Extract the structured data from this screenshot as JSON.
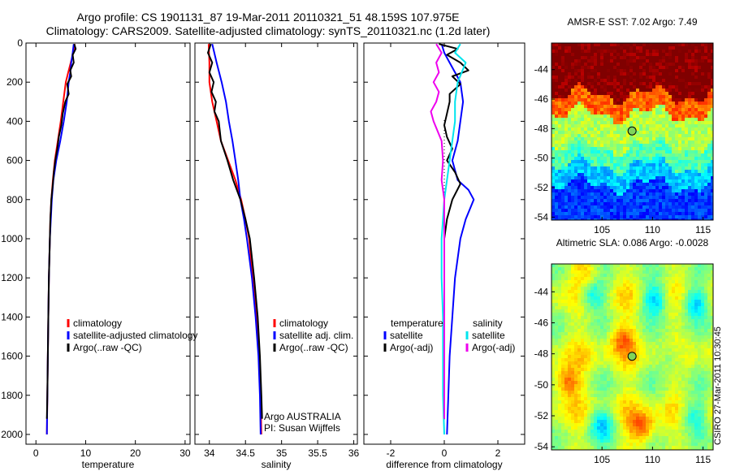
{
  "titles": {
    "line1": "Argo profile: CS 1901131_87 19-Mar-2011 20110321_51 48.159S 107.975E",
    "line2": "Climatology: CARS2009. Satellite-adjusted climatology: synTS_20110321.nc (1.2d later)"
  },
  "side_label": "CSIRO 27-Mar-2011 10:30:45",
  "colors": {
    "climatology": "#ff0000",
    "satellite": "#0000ff",
    "argo": "#000000",
    "temp_satellite": "#0000ff",
    "sal_satellite": "#00e5ee",
    "sal_argo_adj": "#ee00ee"
  },
  "chart_data": [
    {
      "id": "temperature",
      "type": "line",
      "xlabel": "temperature",
      "ylabel": "",
      "xlim": [
        -2,
        31
      ],
      "ylim": [
        2050,
        0
      ],
      "xticks": [
        0,
        10,
        20,
        30
      ],
      "yticks": [
        0,
        200,
        400,
        600,
        800,
        1000,
        1200,
        1400,
        1600,
        1800,
        2000
      ],
      "legend": [
        "climatology",
        "satellite-adjusted climatology",
        "Argo(..raw -QC)"
      ],
      "series": [
        {
          "name": "climatology",
          "color": "#ff0000",
          "points": [
            [
              7.8,
              5
            ],
            [
              7.5,
              50
            ],
            [
              7.0,
              100
            ],
            [
              6.5,
              150
            ],
            [
              6.0,
              200
            ],
            [
              5.5,
              300
            ],
            [
              5.0,
              400
            ],
            [
              4.4,
              500
            ],
            [
              3.8,
              600
            ],
            [
              3.4,
              700
            ],
            [
              3.1,
              800
            ],
            [
              2.9,
              900
            ],
            [
              2.8,
              1000
            ],
            [
              2.6,
              1200
            ],
            [
              2.5,
              1400
            ],
            [
              2.4,
              1600
            ],
            [
              2.3,
              1800
            ],
            [
              2.2,
              2000
            ]
          ]
        },
        {
          "name": "satellite-adjusted climatology",
          "color": "#0000ff",
          "points": [
            [
              7.6,
              5
            ],
            [
              7.4,
              50
            ],
            [
              7.1,
              100
            ],
            [
              6.9,
              150
            ],
            [
              6.6,
              200
            ],
            [
              6.2,
              300
            ],
            [
              5.6,
              400
            ],
            [
              4.9,
              500
            ],
            [
              4.1,
              600
            ],
            [
              3.5,
              700
            ],
            [
              3.2,
              800
            ],
            [
              3.0,
              900
            ],
            [
              2.8,
              1000
            ],
            [
              2.6,
              1200
            ],
            [
              2.5,
              1400
            ],
            [
              2.4,
              1600
            ],
            [
              2.3,
              1800
            ],
            [
              2.2,
              2000
            ]
          ]
        },
        {
          "name": "Argo(..raw -QC)",
          "color": "#000000",
          "points": [
            [
              7.7,
              5
            ],
            [
              8.0,
              30
            ],
            [
              7.4,
              60
            ],
            [
              7.6,
              100
            ],
            [
              6.9,
              140
            ],
            [
              7.1,
              170
            ],
            [
              6.3,
              210
            ],
            [
              6.6,
              260
            ],
            [
              5.9,
              300
            ],
            [
              5.4,
              360
            ],
            [
              5.1,
              420
            ],
            [
              4.6,
              480
            ],
            [
              4.3,
              540
            ],
            [
              3.9,
              600
            ],
            [
              3.6,
              660
            ],
            [
              3.4,
              720
            ],
            [
              3.1,
              800
            ],
            [
              2.9,
              900
            ],
            [
              2.8,
              1000
            ],
            [
              2.6,
              1200
            ],
            [
              2.5,
              1400
            ],
            [
              2.4,
              1600
            ],
            [
              2.3,
              1800
            ],
            [
              2.2,
              1920
            ]
          ]
        }
      ]
    },
    {
      "id": "salinity",
      "type": "line",
      "xlabel": "salinity",
      "ylabel": "",
      "xlim": [
        33.8,
        36.05
      ],
      "ylim": [
        2050,
        0
      ],
      "xticks": [
        34,
        34.5,
        35,
        35.5,
        36
      ],
      "yticks": [
        0,
        200,
        400,
        600,
        800,
        1000,
        1200,
        1400,
        1600,
        1800,
        2000
      ],
      "legend": [
        "climatology",
        "satellite adj. clim.",
        "Argo(..raw -QC)"
      ],
      "annotations": [
        "Argo AUSTRALIA",
        "PI: Susan Wijffels"
      ],
      "series": [
        {
          "name": "climatology",
          "color": "#ff0000",
          "points": [
            [
              33.99,
              5
            ],
            [
              34.0,
              100
            ],
            [
              34.0,
              200
            ],
            [
              34.04,
              300
            ],
            [
              34.1,
              400
            ],
            [
              34.16,
              500
            ],
            [
              34.26,
              600
            ],
            [
              34.36,
              700
            ],
            [
              34.44,
              800
            ],
            [
              34.5,
              900
            ],
            [
              34.55,
              1000
            ],
            [
              34.6,
              1200
            ],
            [
              34.65,
              1400
            ],
            [
              34.69,
              1600
            ],
            [
              34.71,
              1800
            ],
            [
              34.72,
              2000
            ]
          ]
        },
        {
          "name": "satellite adj. clim.",
          "color": "#0000ff",
          "points": [
            [
              34.04,
              5
            ],
            [
              34.1,
              100
            ],
            [
              34.17,
              200
            ],
            [
              34.23,
              300
            ],
            [
              34.27,
              400
            ],
            [
              34.32,
              500
            ],
            [
              34.36,
              600
            ],
            [
              34.4,
              700
            ],
            [
              34.43,
              800
            ],
            [
              34.48,
              900
            ],
            [
              34.52,
              1000
            ],
            [
              34.59,
              1200
            ],
            [
              34.64,
              1400
            ],
            [
              34.68,
              1600
            ],
            [
              34.7,
              1800
            ],
            [
              34.71,
              2000
            ]
          ]
        },
        {
          "name": "Argo(..raw -QC)",
          "color": "#000000",
          "points": [
            [
              34.02,
              5
            ],
            [
              33.98,
              50
            ],
            [
              34.04,
              100
            ],
            [
              34.0,
              150
            ],
            [
              34.06,
              200
            ],
            [
              34.03,
              250
            ],
            [
              34.09,
              300
            ],
            [
              34.07,
              350
            ],
            [
              34.13,
              400
            ],
            [
              34.16,
              500
            ],
            [
              34.25,
              600
            ],
            [
              34.33,
              700
            ],
            [
              34.43,
              800
            ],
            [
              34.5,
              900
            ],
            [
              34.56,
              1000
            ],
            [
              34.62,
              1200
            ],
            [
              34.67,
              1400
            ],
            [
              34.7,
              1600
            ],
            [
              34.72,
              1800
            ],
            [
              34.73,
              1920
            ]
          ]
        }
      ]
    },
    {
      "id": "difference",
      "type": "line",
      "xlabel": "difference from climatology",
      "ylabel": "",
      "xlim": [
        -3,
        3
      ],
      "ylim": [
        2050,
        0
      ],
      "xticks": [
        -2,
        0,
        2
      ],
      "yticks": [
        0,
        200,
        400,
        600,
        800,
        1000,
        1200,
        1400,
        1600,
        1800,
        2000
      ],
      "legend_left": [
        "temperature",
        "satellite",
        "Argo(-adj)"
      ],
      "legend_right": [
        "salinity",
        "satellite",
        "Argo(-adj)"
      ],
      "series": [
        {
          "name": "temperature satellite",
          "color": "#0000ff",
          "points": [
            [
              -0.1,
              5
            ],
            [
              0.0,
              50
            ],
            [
              0.2,
              100
            ],
            [
              0.4,
              150
            ],
            [
              0.6,
              200
            ],
            [
              0.7,
              300
            ],
            [
              0.6,
              400
            ],
            [
              0.5,
              500
            ],
            [
              0.3,
              600
            ],
            [
              0.5,
              700
            ],
            [
              0.9,
              750
            ],
            [
              1.1,
              800
            ],
            [
              0.8,
              900
            ],
            [
              0.6,
              1000
            ],
            [
              0.4,
              1200
            ],
            [
              0.3,
              1400
            ],
            [
              0.2,
              1600
            ],
            [
              0.15,
              1800
            ],
            [
              0.1,
              2000
            ]
          ]
        },
        {
          "name": "temperature Argo(-adj)",
          "color": "#000000",
          "points": [
            [
              -0.2,
              5
            ],
            [
              0.5,
              30
            ],
            [
              0.1,
              60
            ],
            [
              0.6,
              100
            ],
            [
              0.9,
              140
            ],
            [
              0.3,
              170
            ],
            [
              0.6,
              210
            ],
            [
              0.2,
              260
            ],
            [
              0.2,
              300
            ],
            [
              0.1,
              360
            ],
            [
              0.0,
              420
            ],
            [
              0.1,
              480
            ],
            [
              0.3,
              540
            ],
            [
              0.1,
              600
            ],
            [
              0.4,
              660
            ],
            [
              0.6,
              720
            ],
            [
              0.3,
              800
            ],
            [
              0.1,
              900
            ],
            [
              0.0,
              1000
            ],
            [
              0.0,
              1200
            ],
            [
              0.0,
              1400
            ],
            [
              0.0,
              1600
            ],
            [
              0.0,
              1800
            ],
            [
              0.0,
              1920
            ]
          ]
        },
        {
          "name": "salinity satellite",
          "color": "#00e5ee",
          "points": [
            [
              0.6,
              5
            ],
            [
              0.4,
              50
            ],
            [
              0.8,
              100
            ],
            [
              0.5,
              200
            ],
            [
              0.4,
              300
            ],
            [
              0.4,
              400
            ],
            [
              0.3,
              500
            ],
            [
              0.2,
              600
            ],
            [
              0.1,
              700
            ],
            [
              0.0,
              800
            ],
            [
              -0.05,
              900
            ],
            [
              -0.1,
              1000
            ],
            [
              -0.1,
              1200
            ],
            [
              -0.05,
              1400
            ],
            [
              -0.05,
              1600
            ],
            [
              -0.05,
              1800
            ],
            [
              0.0,
              2000
            ]
          ]
        },
        {
          "name": "salinity Argo(-adj)",
          "color": "#ee00ee",
          "points": [
            [
              -0.3,
              5
            ],
            [
              -0.1,
              50
            ],
            [
              -0.3,
              100
            ],
            [
              -0.2,
              150
            ],
            [
              -0.4,
              200
            ],
            [
              -0.2,
              250
            ],
            [
              -0.3,
              300
            ],
            [
              -0.5,
              350
            ],
            [
              -0.4,
              400
            ],
            [
              -0.1,
              500
            ],
            [
              -0.05,
              600
            ],
            [
              -0.1,
              700
            ],
            [
              0.0,
              800
            ],
            [
              0.0,
              900
            ],
            [
              0.0,
              1000
            ],
            [
              0.0,
              1200
            ],
            [
              0.0,
              1400
            ],
            [
              0.0,
              1600
            ],
            [
              0.0,
              1800
            ],
            [
              0.0,
              1920
            ]
          ]
        }
      ]
    },
    {
      "id": "sst_map",
      "type": "heatmap",
      "title": "AMSR-E SST: 7.02 Argo: 7.49",
      "xlim": [
        100,
        116
      ],
      "ylim": [
        -54.2,
        -42.2
      ],
      "xticks": [
        105,
        110,
        115
      ],
      "yticks": [
        -44,
        -46,
        -48,
        -50,
        -52,
        -54
      ],
      "marker": {
        "lon": 107.975,
        "lat": -48.159
      },
      "bands": [
        {
          "to_lat": -45.7,
          "value": 1.0
        },
        {
          "to_lat": -47.0,
          "value": 0.78
        },
        {
          "to_lat": -49.2,
          "value": 0.55
        },
        {
          "to_lat": -50.5,
          "value": 0.45
        },
        {
          "to_lat": -51.8,
          "value": 0.32
        },
        {
          "to_lat": -54.2,
          "value": 0.18
        }
      ]
    },
    {
      "id": "sla_map",
      "type": "heatmap",
      "title": "Altimetric SLA: 0.086 Argo: -0.0028",
      "xlim": [
        100,
        116
      ],
      "ylim": [
        -54.2,
        -42.2
      ],
      "xticks": [
        105,
        110,
        115
      ],
      "yticks": [
        -44,
        -46,
        -48,
        -50,
        -52,
        -54
      ],
      "marker": {
        "lon": 107.975,
        "lat": -48.159
      },
      "features": [
        {
          "lon": 104.0,
          "lat": -44.2,
          "value": 0.35
        },
        {
          "lon": 110.2,
          "lat": -44.5,
          "value": 0.33
        },
        {
          "lon": 114.2,
          "lat": -44.7,
          "value": 0.34
        },
        {
          "lon": 107.0,
          "lat": -47.0,
          "value": 0.75
        },
        {
          "lon": 101.5,
          "lat": -49.8,
          "value": 0.8
        },
        {
          "lon": 112.0,
          "lat": -48.2,
          "value": 0.45
        },
        {
          "lon": 105.0,
          "lat": -52.5,
          "value": 0.35
        },
        {
          "lon": 109.0,
          "lat": -52.8,
          "value": 0.8
        },
        {
          "lon": 103.5,
          "lat": -42.8,
          "value": 0.7
        },
        {
          "lon": 114.0,
          "lat": -52.0,
          "value": 0.4
        }
      ]
    }
  ]
}
